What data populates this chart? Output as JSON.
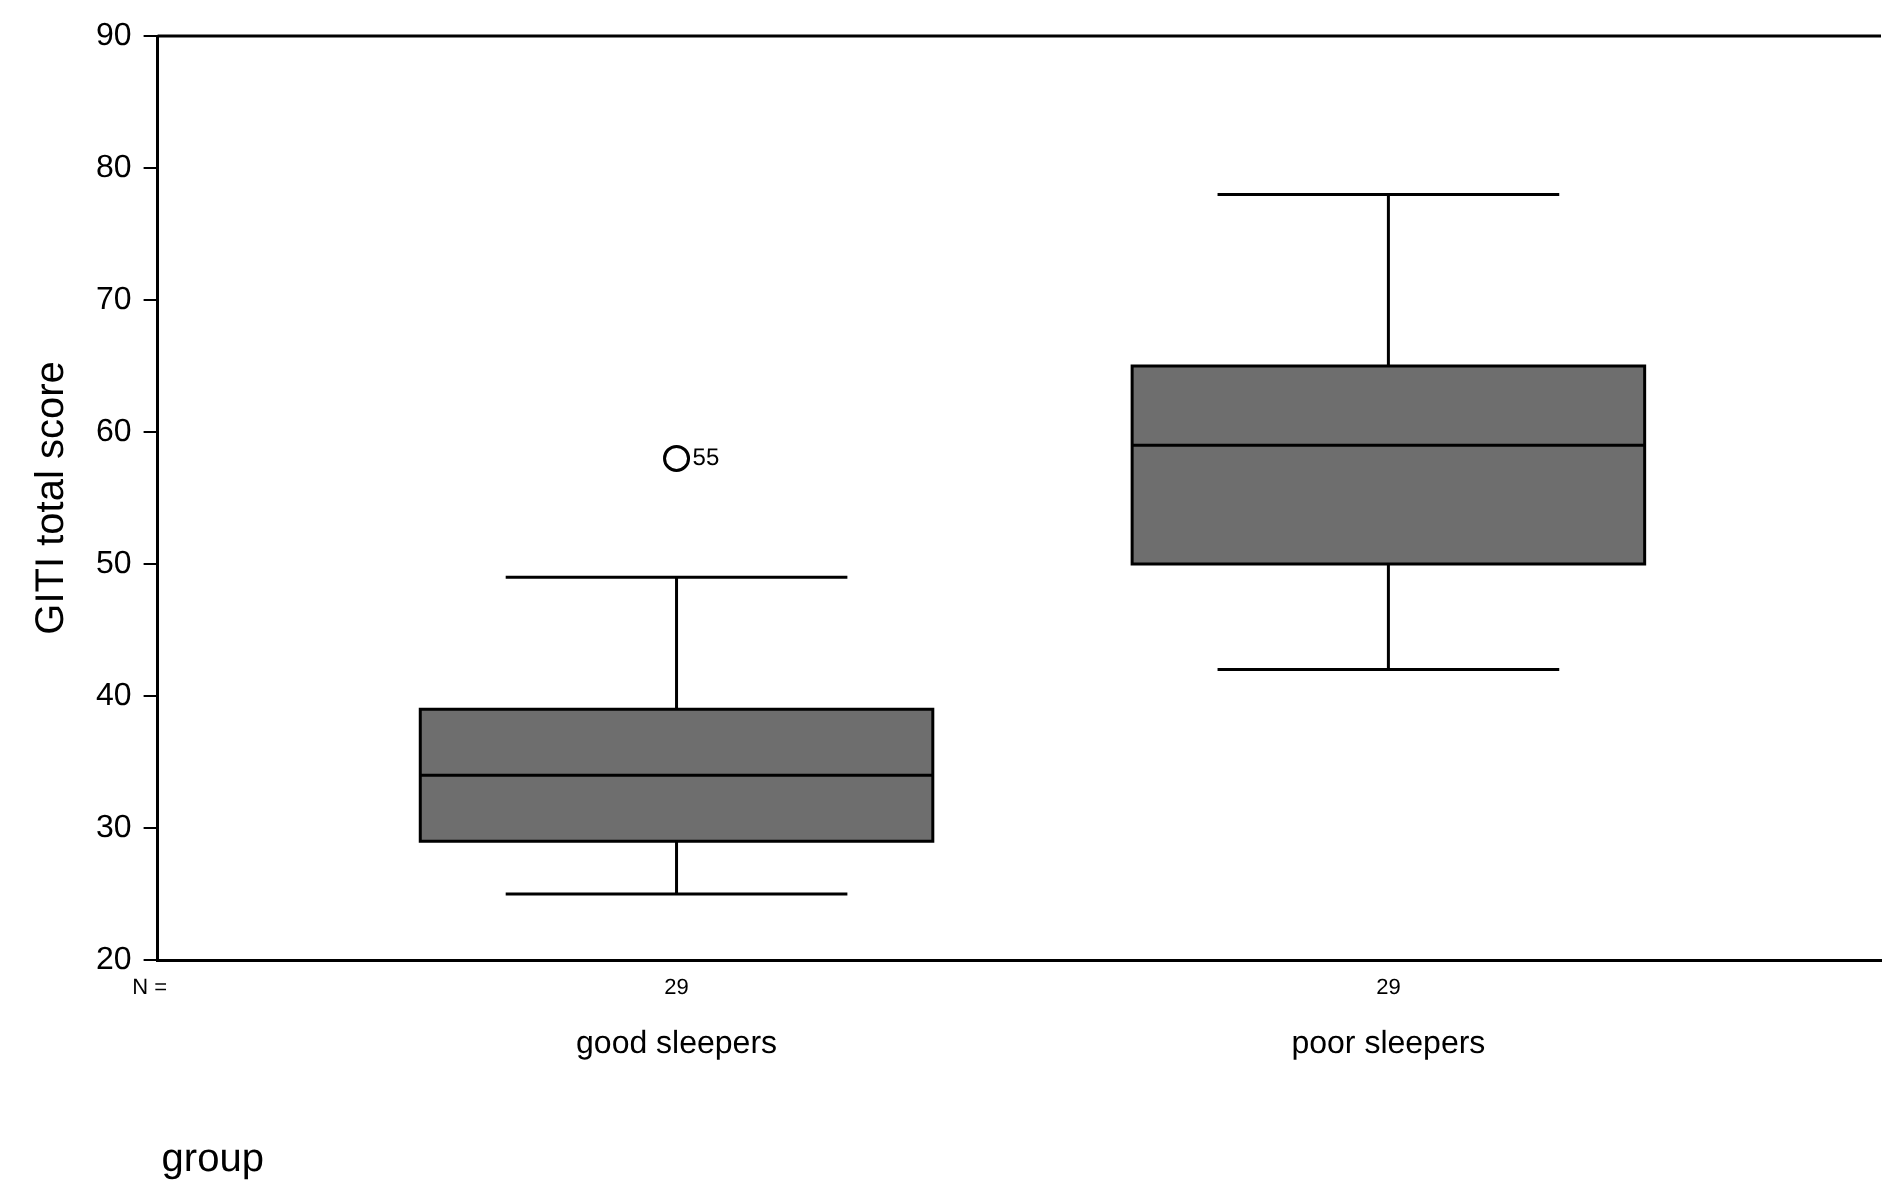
{
  "chart_data": {
    "type": "box",
    "ylabel": "GITI total score",
    "xlabel": "group",
    "categories": [
      "good sleepers",
      "poor sleepers"
    ],
    "boxes": [
      {
        "low": 25,
        "q1": 29,
        "median": 34,
        "q3": 39,
        "high": 49,
        "outliers": [
          58
        ]
      },
      {
        "low": 42,
        "q1": 50,
        "median": 59,
        "q3": 65,
        "high": 78
      }
    ],
    "color": "#6e6e6e",
    "ylim": [
      20,
      90
    ],
    "yticks": [
      20,
      30,
      40,
      50,
      60,
      70,
      80,
      90
    ],
    "grid": false,
    "legend": false,
    "annotations": [
      "N =",
      "29",
      "29",
      "55"
    ]
  }
}
